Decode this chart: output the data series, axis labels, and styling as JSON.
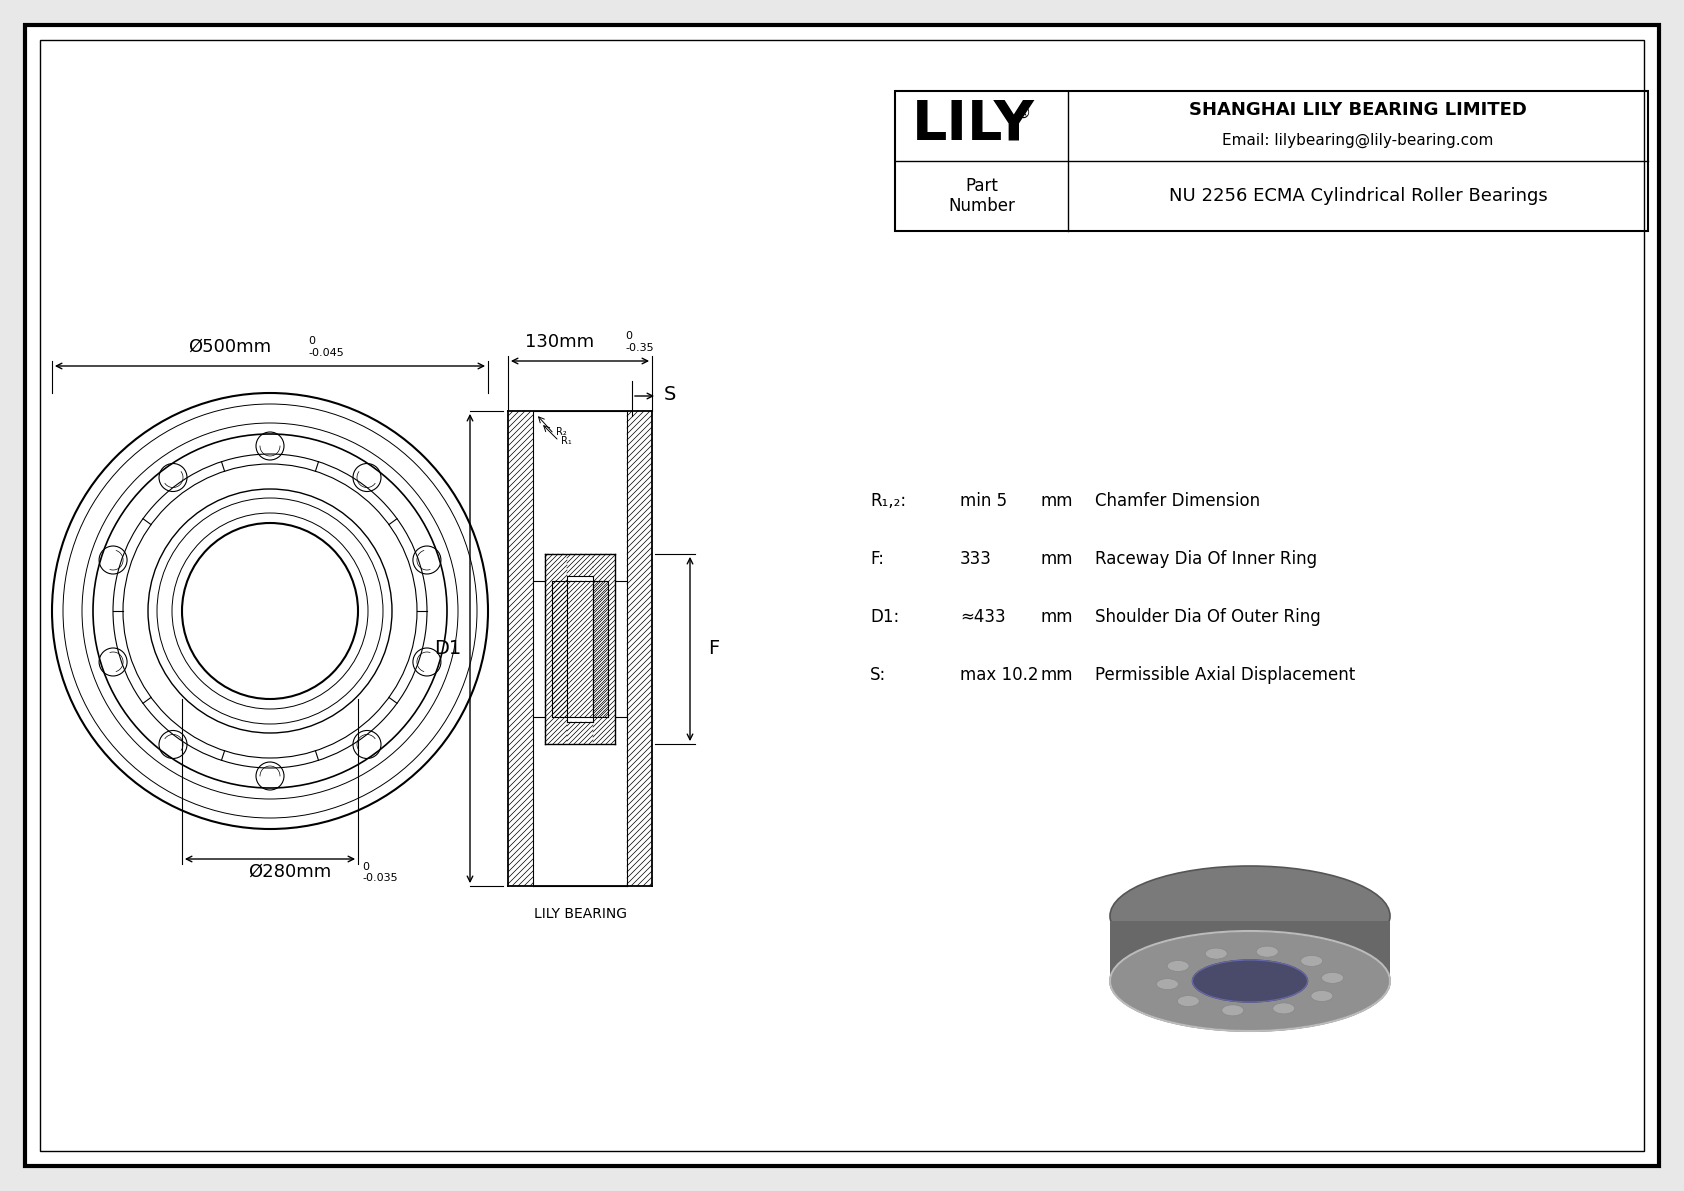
{
  "bg_color": "#e8e8e8",
  "drawing_bg": "#ffffff",
  "line_color": "#000000",
  "company": "SHANGHAI LILY BEARING LIMITED",
  "email": "Email: lilybearing@lily-bearing.com",
  "part_label": "Part\nNumber",
  "part_number": "NU 2256 ECMA Cylindrical Roller Bearings",
  "lily_text": "LILY",
  "dim_outer": "Ø500mm",
  "dim_outer_tol": "-0.045",
  "dim_outer_tol_top": "0",
  "dim_inner": "Ø280mm",
  "dim_inner_tol": "-0.035",
  "dim_inner_tol_top": "0",
  "dim_width": "130mm",
  "dim_width_tol": "-0.35",
  "dim_width_tol_top": "0",
  "label_D1": "D1",
  "label_F": "F",
  "label_S": "S",
  "label_R2": "R₂",
  "label_R1": "R₁",
  "spec_R12_label": "R₁,₂:",
  "spec_R12_val": "min 5",
  "spec_R12_unit": "mm",
  "spec_R12_desc": "Chamfer Dimension",
  "spec_F_label": "F:",
  "spec_F_val": "333",
  "spec_F_unit": "mm",
  "spec_F_desc": "Raceway Dia Of Inner Ring",
  "spec_D1_label": "D1:",
  "spec_D1_val": "≈433",
  "spec_D1_unit": "mm",
  "spec_D1_desc": "Shoulder Dia Of Outer Ring",
  "spec_S_label": "S:",
  "spec_S_val": "max 10.2",
  "spec_S_unit": "mm",
  "spec_S_desc": "Permissible Axial Displacement",
  "lily_bearing_label": "LILY BEARING"
}
